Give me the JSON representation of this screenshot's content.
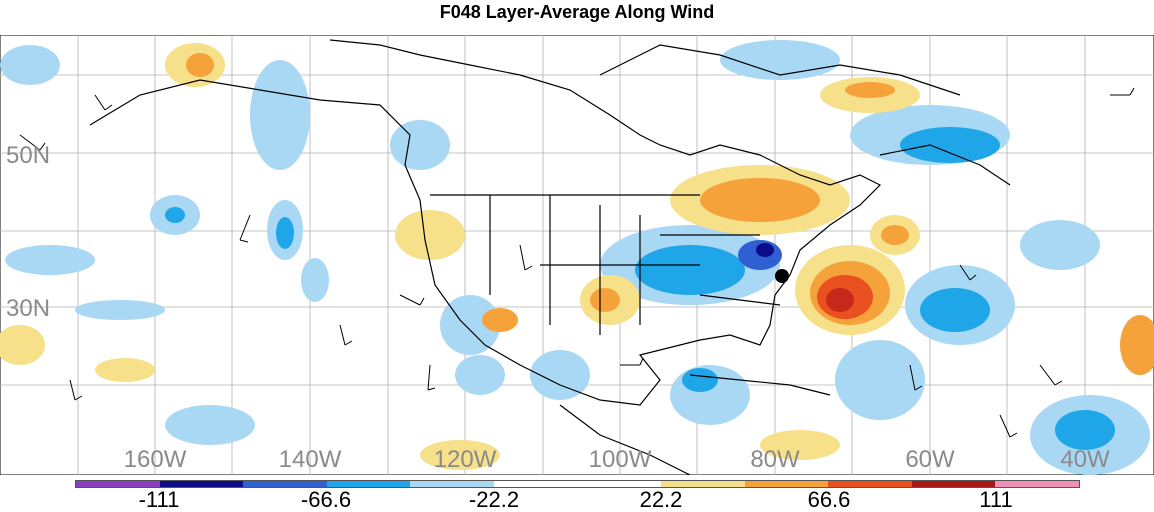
{
  "title": "F048 Layer-Average Along Wind",
  "lat_labels": [
    "50N",
    "30N"
  ],
  "lon_labels": [
    "160W",
    "140W",
    "120W",
    "100W",
    "80W",
    "60W",
    "40W"
  ],
  "colorbar": {
    "colors": [
      "#8a3dbf",
      "#0d0d8a",
      "#2f5fd0",
      "#1fa6e8",
      "#a9d8f5",
      "#ffffff",
      "#ffffff",
      "#f7e08a",
      "#f5a23a",
      "#e8501f",
      "#a81818",
      "#f090b8"
    ],
    "labels": [
      "-111",
      "-66.6",
      "-22.2",
      "22.2",
      "66.6",
      "111"
    ]
  },
  "map": {
    "ocean": "#ffffff",
    "positive_colors": [
      "#f7e08a",
      "#f5a23a",
      "#e8501f",
      "#c8281a"
    ],
    "negative_colors": [
      "#a9d8f5",
      "#1fa6e8",
      "#2f5fd0",
      "#0d0d8a"
    ]
  }
}
